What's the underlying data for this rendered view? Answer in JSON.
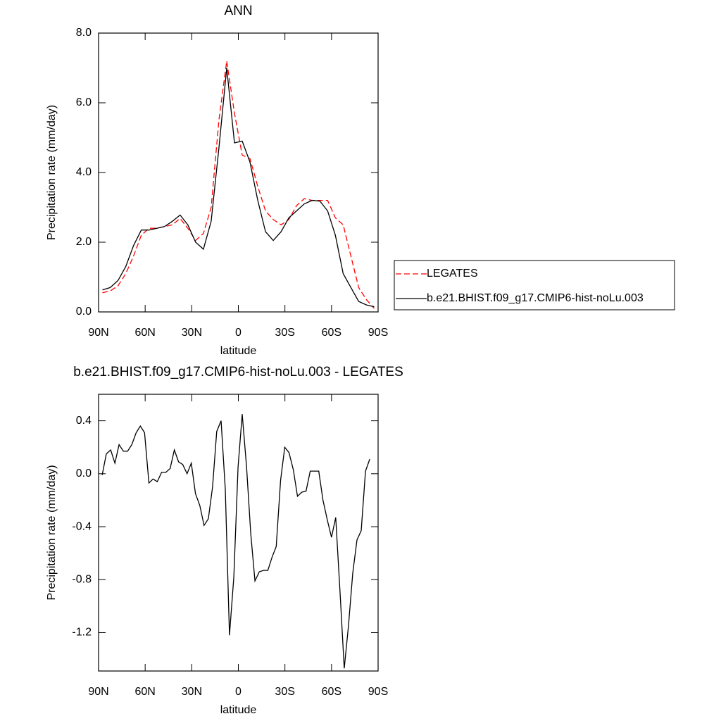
{
  "chart_data": [
    {
      "type": "line",
      "title": "ANN",
      "ylabel": "Precipitation rate (mm/day)",
      "xlabel": "latitude",
      "x": [
        87.5,
        82.5,
        77.5,
        72.5,
        67.5,
        62.5,
        57.5,
        52.5,
        47.5,
        42.5,
        37.5,
        32.5,
        27.5,
        22.5,
        17.5,
        12.5,
        7.5,
        2.5,
        -2.5,
        -7.5,
        -12.5,
        -17.5,
        -22.5,
        -27.5,
        -32.5,
        -37.5,
        -42.5,
        -47.5,
        -52.5,
        -57.5,
        -62.5,
        -67.5,
        -72.5,
        -77.5,
        -82.5,
        -87.5
      ],
      "series": [
        {
          "name": "LEGATES",
          "color": "#ff0000",
          "style": "dashed",
          "values": [
            0.55,
            0.6,
            0.75,
            1.1,
            1.6,
            2.2,
            2.4,
            2.4,
            2.45,
            2.5,
            2.68,
            2.4,
            2.05,
            2.25,
            3.0,
            5.5,
            7.2,
            5.7,
            4.5,
            4.4,
            3.6,
            2.9,
            2.65,
            2.5,
            2.65,
            3.05,
            3.25,
            3.2,
            3.2,
            3.2,
            2.7,
            2.5,
            1.6,
            0.7,
            0.35,
            0.1
          ]
        },
        {
          "name": "b.e21.BHIST.f09_g17.CMIP6-hist-noLu.003",
          "color": "#000000",
          "style": "solid",
          "values": [
            0.63,
            0.7,
            0.9,
            1.3,
            1.9,
            2.35,
            2.35,
            2.4,
            2.45,
            2.6,
            2.78,
            2.5,
            2.0,
            1.8,
            2.6,
            4.7,
            7.0,
            4.85,
            4.9,
            4.3,
            3.2,
            2.3,
            2.05,
            2.3,
            2.7,
            2.9,
            3.1,
            3.2,
            3.18,
            2.9,
            2.2,
            1.1,
            0.7,
            0.3,
            0.2,
            0.15
          ]
        }
      ],
      "xlim": [
        90,
        -90
      ],
      "xticks": [
        {
          "value": 90,
          "label": "90N"
        },
        {
          "value": 60,
          "label": "60N"
        },
        {
          "value": 30,
          "label": "30N"
        },
        0,
        {
          "value": -30,
          "label": "30S"
        },
        {
          "value": -60,
          "label": "60S"
        },
        {
          "value": -90,
          "label": "90S"
        }
      ],
      "ylim": [
        0,
        8
      ],
      "yticks": [
        {
          "value": 0,
          "label": "0.0"
        },
        {
          "value": 2,
          "label": "2.0"
        },
        {
          "value": 4,
          "label": "4.0"
        },
        {
          "value": 6,
          "label": "6.0"
        },
        {
          "value": 8,
          "label": "8.0"
        }
      ],
      "legend": "right"
    },
    {
      "type": "line",
      "title": "b.e21.BHIST.f09_g17.CMIP6-hist-noLu.003 - LEGATES",
      "ylabel": "Precipitation rate (mm/day)",
      "xlabel": "latitude",
      "x": [
        87.7,
        85.0,
        82.2,
        79.5,
        76.8,
        74.0,
        71.3,
        68.6,
        65.8,
        63.1,
        60.4,
        57.6,
        54.9,
        52.2,
        49.4,
        46.7,
        43.9,
        41.2,
        38.5,
        35.8,
        33.0,
        30.3,
        27.6,
        24.8,
        22.1,
        19.3,
        16.6,
        13.9,
        11.1,
        8.4,
        5.7,
        2.9,
        0.2,
        -2.5,
        -5.3,
        -8.0,
        -10.7,
        -13.5,
        -16.2,
        -19.0,
        -21.7,
        -24.4,
        -27.2,
        -29.9,
        -32.6,
        -35.4,
        -38.1,
        -40.8,
        -43.6,
        -46.3,
        -49.0,
        -51.8,
        -54.5,
        -57.3,
        -60.0,
        -62.7,
        -65.5,
        -68.2,
        -70.9,
        -73.7,
        -76.4,
        -79.1,
        -81.9,
        -84.6
      ],
      "series": [
        {
          "color": "#000000",
          "style": "solid",
          "values": [
            -0.01,
            0.15,
            0.18,
            0.08,
            0.22,
            0.17,
            0.17,
            0.22,
            0.31,
            0.36,
            0.31,
            -0.07,
            -0.04,
            -0.06,
            0.01,
            0.01,
            0.04,
            0.18,
            0.09,
            0.07,
            0.0,
            0.08,
            -0.15,
            -0.24,
            -0.39,
            -0.34,
            -0.1,
            0.32,
            0.4,
            -0.12,
            -1.22,
            -0.78,
            0.05,
            0.45,
            0.05,
            -0.45,
            -0.81,
            -0.74,
            -0.73,
            -0.73,
            -0.63,
            -0.55,
            -0.05,
            0.2,
            0.16,
            0.03,
            -0.17,
            -0.14,
            -0.13,
            0.02,
            0.02,
            0.02,
            -0.2,
            -0.35,
            -0.48,
            -0.33,
            -0.9,
            -1.47,
            -1.15,
            -0.75,
            -0.5,
            -0.43,
            0.02,
            0.11
          ]
        }
      ],
      "xlim": [
        90,
        -90
      ],
      "xticks": [
        {
          "value": 90,
          "label": "90N"
        },
        {
          "value": 60,
          "label": "60N"
        },
        {
          "value": 30,
          "label": "30N"
        },
        0,
        {
          "value": -30,
          "label": "30S"
        },
        {
          "value": -60,
          "label": "60S"
        },
        {
          "value": -90,
          "label": "90S"
        }
      ],
      "ylim": [
        -1.49,
        0.6
      ],
      "yticks": [
        0.4,
        {
          "value": 0,
          "label": "0.0"
        },
        -0.4,
        -0.8,
        -1.2
      ]
    }
  ]
}
